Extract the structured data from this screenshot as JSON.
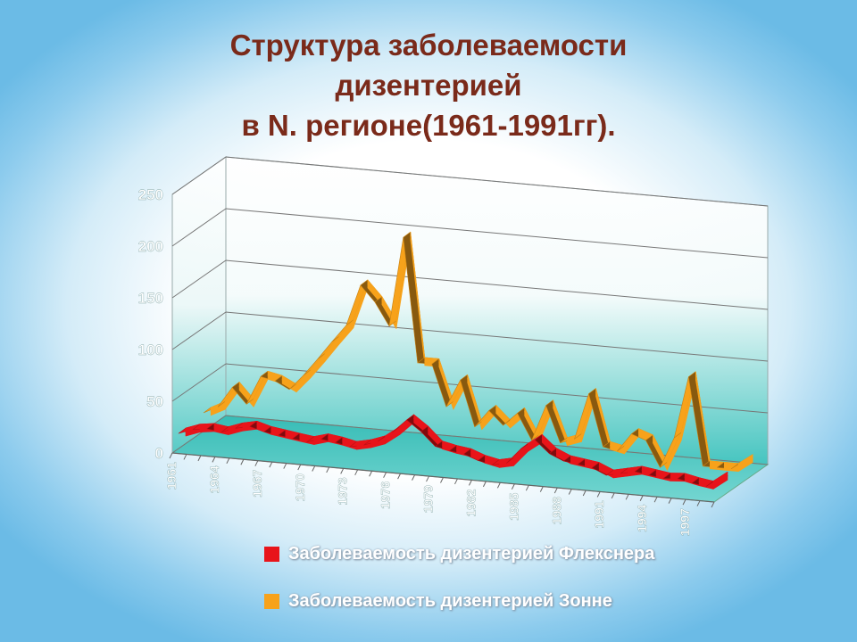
{
  "title": {
    "line1": "Структура заболеваемости",
    "line2": "дизентерией",
    "line3": "в  N. регионе(1961-1991гг)."
  },
  "colors": {
    "title": "#7a2a1a",
    "flexner": "#e8141a",
    "sonne": "#f7a21b",
    "floor": "#3fc3bd"
  },
  "chart_data": {
    "type": "line",
    "style": "3d",
    "ylim": [
      0,
      250
    ],
    "yticks": [
      0,
      50,
      100,
      150,
      200,
      250
    ],
    "grid": true,
    "legend_position": "bottom",
    "x_labels": [
      "1961",
      "1964",
      "1967",
      "1970",
      "1973",
      "1976",
      "1979",
      "1982",
      "1985",
      "1988",
      "1991",
      "1994",
      "1997"
    ],
    "x": [
      1961,
      1962,
      1963,
      1964,
      1965,
      1966,
      1967,
      1968,
      1969,
      1970,
      1971,
      1972,
      1973,
      1974,
      1975,
      1976,
      1977,
      1978,
      1979,
      1980,
      1981,
      1982,
      1983,
      1984,
      1985,
      1986,
      1987,
      1988,
      1989,
      1990,
      1991,
      1992,
      1993,
      1994,
      1995,
      1996,
      1997,
      1998,
      1999
    ],
    "series": [
      {
        "name": "Заболеваемость дизентерией Флекснера",
        "color": "#e8141a",
        "values": [
          15,
          20,
          22,
          20,
          25,
          28,
          24,
          22,
          20,
          18,
          22,
          20,
          17,
          20,
          25,
          35,
          48,
          38,
          25,
          22,
          20,
          15,
          12,
          15,
          30,
          40,
          28,
          22,
          20,
          18,
          12,
          15,
          18,
          16,
          14,
          15,
          12,
          10,
          20
        ]
      },
      {
        "name": "Заболеваемость дизентерией Зонне",
        "color": "#f7a21b",
        "values": [
          18,
          25,
          45,
          30,
          58,
          55,
          48,
          63,
          80,
          98,
          115,
          155,
          140,
          118,
          205,
          85,
          85,
          45,
          72,
          28,
          45,
          32,
          45,
          20,
          55,
          20,
          25,
          70,
          20,
          17,
          35,
          30,
          5,
          35,
          95,
          10,
          10,
          10,
          20
        ]
      }
    ]
  },
  "legend": {
    "flexner_label": "Заболеваемость дизентерией Флекснера",
    "sonne_label": "Заболеваемость дизентерией Зонне"
  }
}
